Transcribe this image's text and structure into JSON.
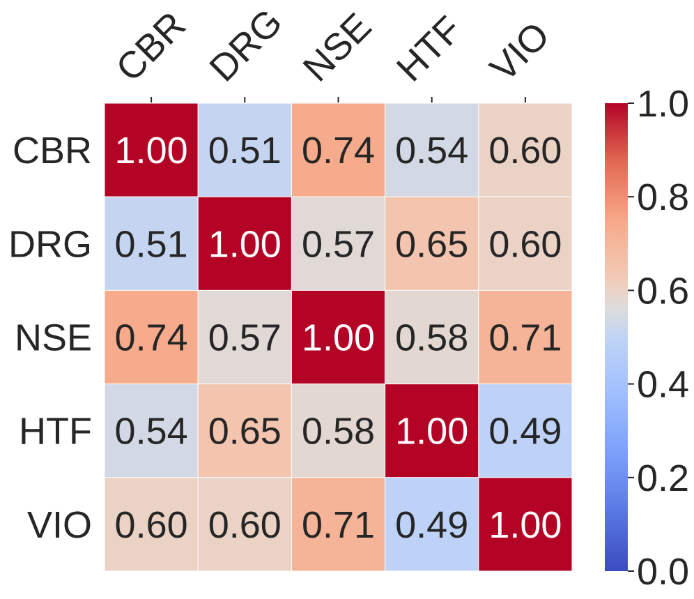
{
  "chart_data": {
    "type": "heatmap",
    "title": "",
    "xlabel": "",
    "ylabel": "",
    "x_labels": [
      "CBR",
      "DRG",
      "NSE",
      "HTF",
      "VIO"
    ],
    "y_labels": [
      "CBR",
      "DRG",
      "NSE",
      "HTF",
      "VIO"
    ],
    "values": [
      [
        1.0,
        0.51,
        0.74,
        0.54,
        0.6
      ],
      [
        0.51,
        1.0,
        0.57,
        0.65,
        0.6
      ],
      [
        0.74,
        0.57,
        1.0,
        0.58,
        0.71
      ],
      [
        0.54,
        0.65,
        0.58,
        1.0,
        0.49
      ],
      [
        0.6,
        0.6,
        0.71,
        0.49,
        1.0
      ]
    ],
    "cell_labels": [
      [
        "1.00",
        "0.51",
        "0.74",
        "0.54",
        "0.60"
      ],
      [
        "0.51",
        "1.00",
        "0.57",
        "0.65",
        "0.60"
      ],
      [
        "0.74",
        "0.57",
        "1.00",
        "0.58",
        "0.71"
      ],
      [
        "0.54",
        "0.65",
        "0.58",
        "1.00",
        "0.49"
      ],
      [
        "0.60",
        "0.60",
        "0.71",
        "0.49",
        "1.00"
      ]
    ],
    "colormap": "coolwarm",
    "vmin": 0.0,
    "vmax": 1.0,
    "colorbar": {
      "ticks": [
        0.0,
        0.2,
        0.4,
        0.6,
        0.8,
        1.0
      ],
      "tick_labels": [
        "0.0",
        "0.2",
        "0.4",
        "0.6",
        "0.8",
        "1.0"
      ],
      "placement": "right"
    },
    "x_tick_position": "top",
    "colors": {
      "low": "#3b4cc0",
      "mid": "#dddddd",
      "high": "#b40426",
      "text_dark": "#262626",
      "text_light": "#ffffff",
      "grid": "#ffffff"
    }
  }
}
